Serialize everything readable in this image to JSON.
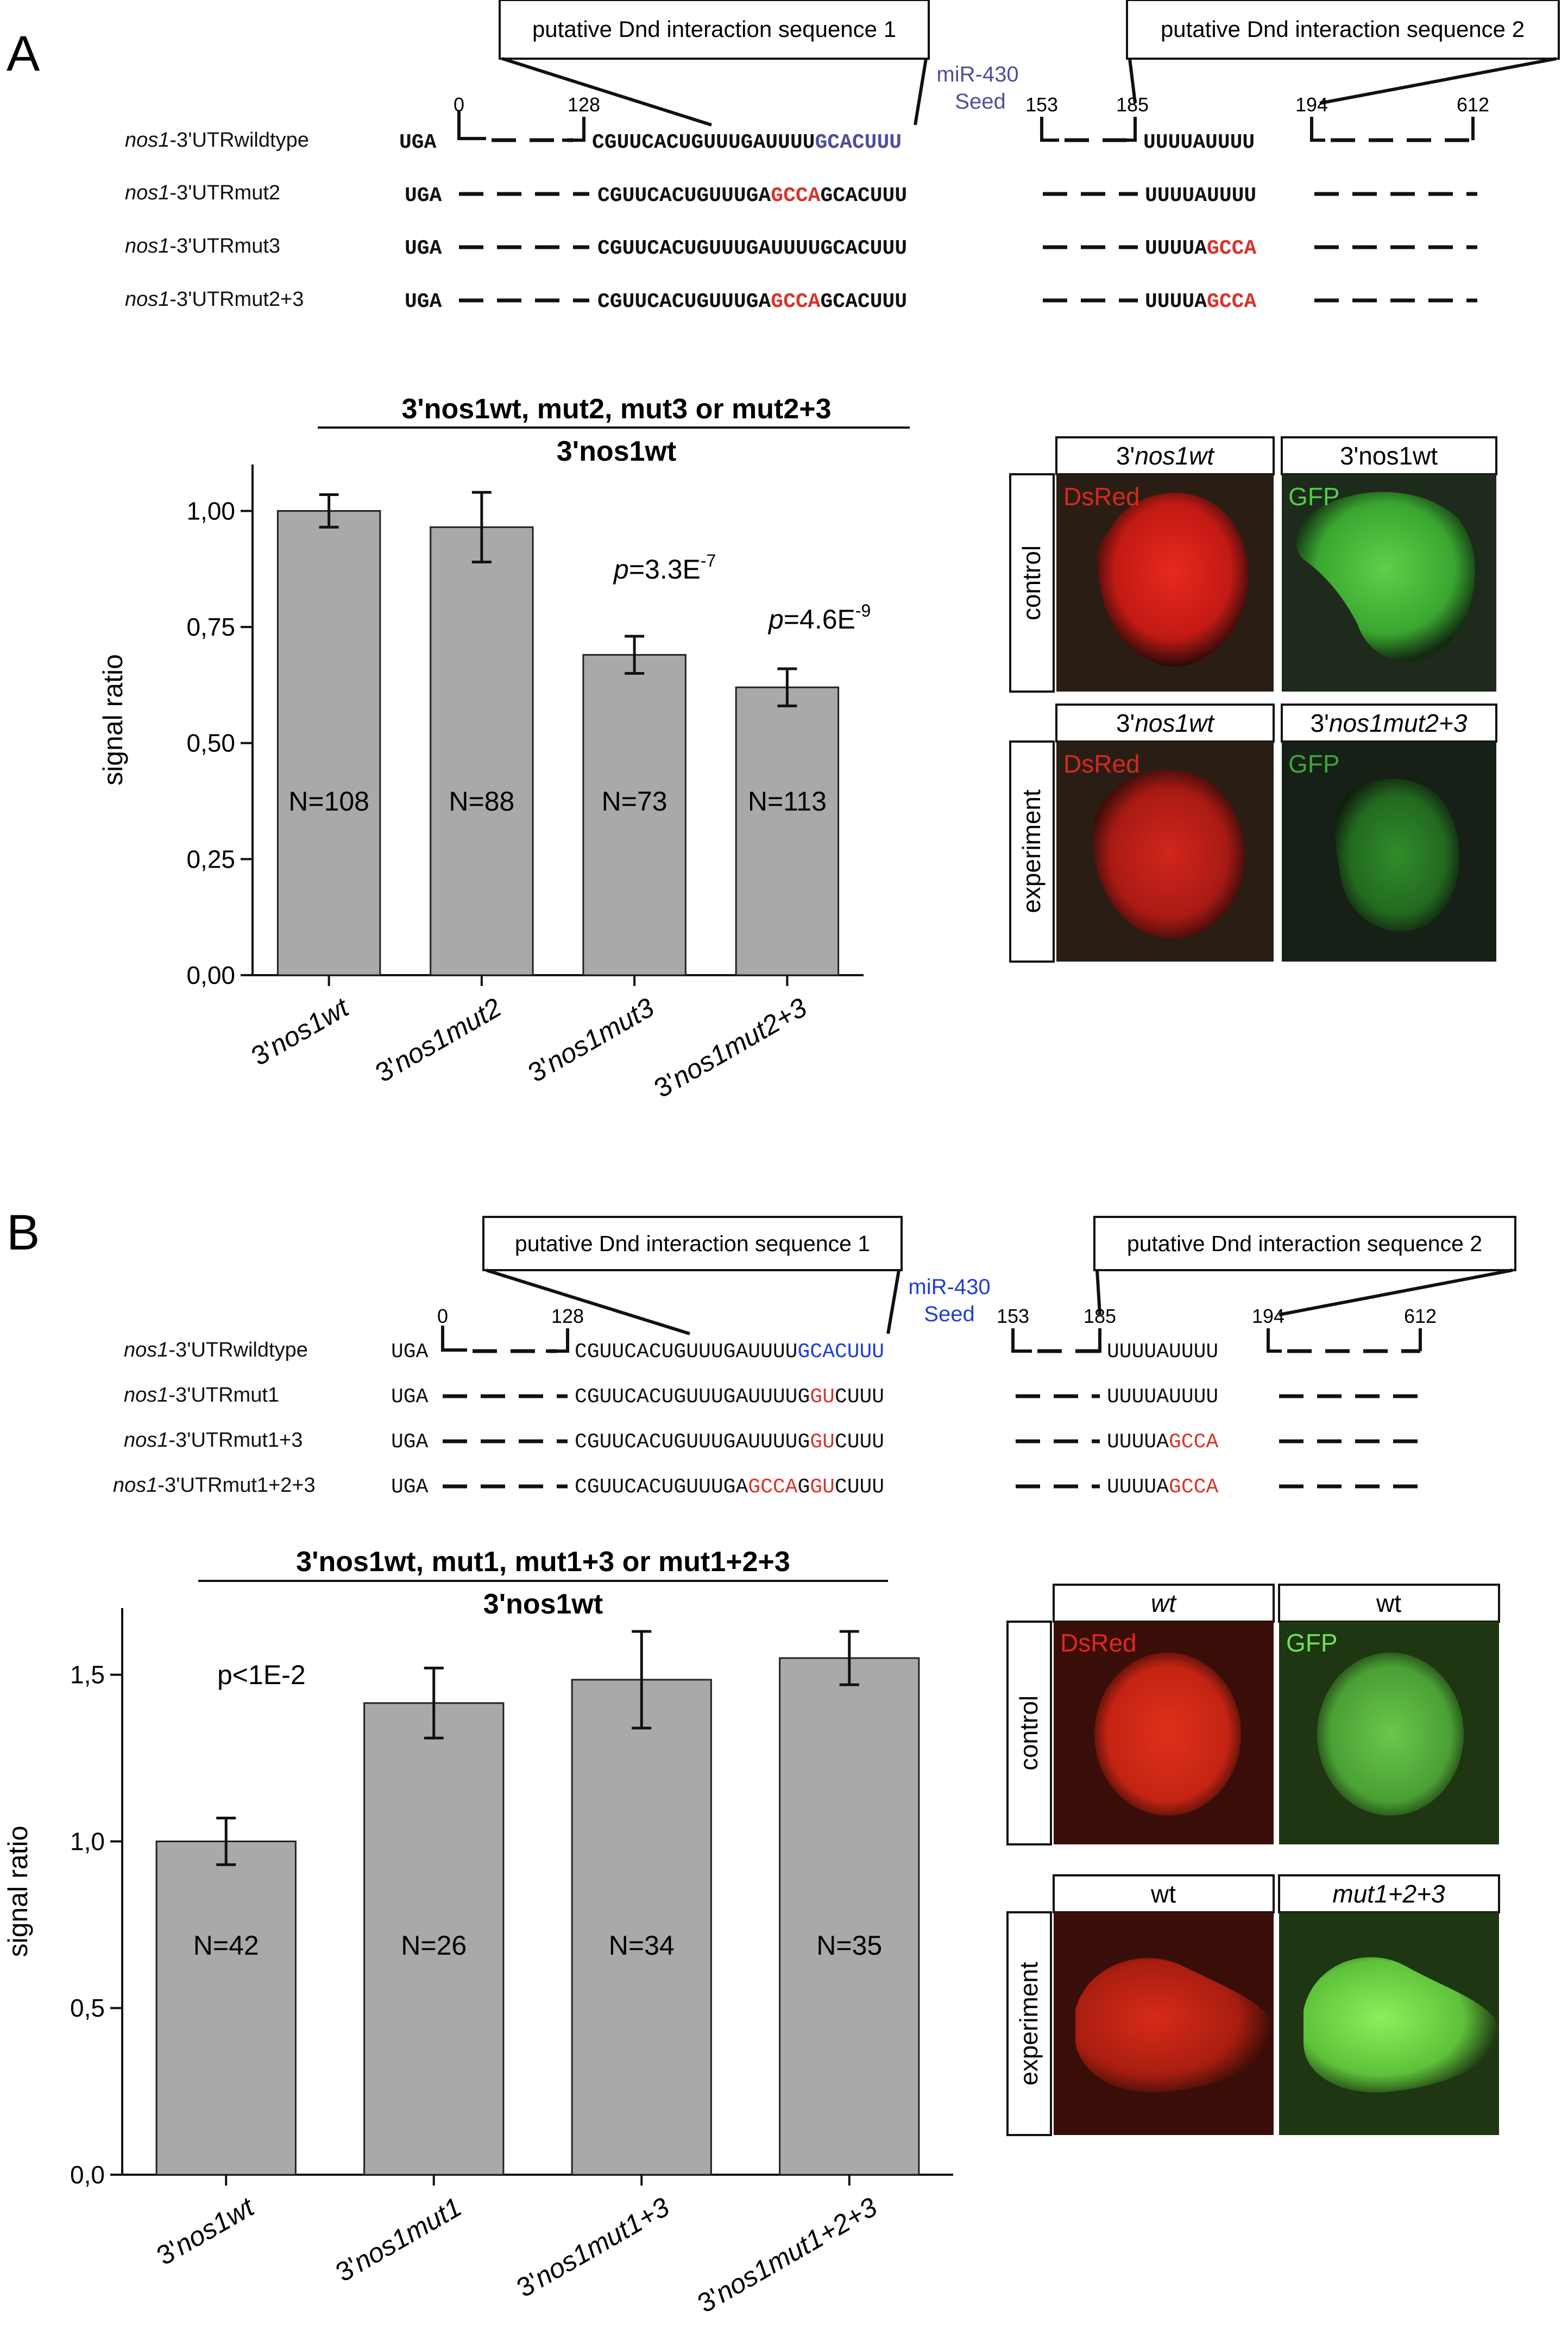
{
  "panels": [
    {
      "letter": "A",
      "box1": "putative Dnd interaction sequence 1",
      "box2": "putative Dnd interaction sequence 2",
      "seed1": "miR-430",
      "seed2": "Seed",
      "pos": [
        "0",
        "128",
        "153",
        "185",
        "194",
        "612"
      ],
      "rows": [
        {
          "label_it": "nos1",
          "label": "-3'UTRwildtype"
        },
        {
          "label_it": "nos1",
          "label": "-3'UTRmut2"
        },
        {
          "label_it": "nos1",
          "label": "-3'UTRmut3"
        },
        {
          "label_it": "nos1",
          "label": "-3'UTRmut2+3"
        }
      ],
      "title_line1": "3'nos1wt, mut2, mut3 or mut2+3",
      "title_line2": "3'nos1wt",
      "pvals": [
        {
          "prefix": "p",
          "text": "=3.3E",
          "exp": "-7"
        },
        {
          "prefix": "p",
          "text": "=4.6E",
          "exp": "-9"
        }
      ],
      "images": {
        "row1": "control",
        "row2": "experiment",
        "headers": [
          "3'nos1wt",
          "3'nos1wt",
          "3'nos1wt",
          "3'nos1mut2+3"
        ],
        "tags": [
          "DsRed",
          "GFP",
          "DsRed",
          "GFP"
        ]
      }
    },
    {
      "letter": "B",
      "box1": "putative Dnd interaction sequence 1",
      "box2": "putative Dnd interaction sequence 2",
      "seed1": "miR-430",
      "seed2": "Seed",
      "pos": [
        "0",
        "128",
        "153",
        "185",
        "194",
        "612"
      ],
      "rows": [
        {
          "label_it": "nos1",
          "label": "-3'UTRwildtype"
        },
        {
          "label_it": "nos1",
          "label": "-3'UTRmut1"
        },
        {
          "label_it": "nos1",
          "label": "-3'UTRmut1+3"
        },
        {
          "label_it": "nos1",
          "label": "-3'UTRmut1+2+3"
        }
      ],
      "title_line1": "3'nos1wt, mut1, mut1+3 or mut1+2+3",
      "title_line2": "3'nos1wt",
      "pvals": [
        {
          "text": "p<1E-2"
        }
      ],
      "images": {
        "row1": "control",
        "row2": "experiment",
        "headers": [
          "wt",
          "wt",
          "wt",
          "mut1+2+3"
        ],
        "tags": [
          "DsRed",
          "GFP",
          "",
          ""
        ]
      }
    }
  ],
  "chart_data": [
    {
      "type": "bar",
      "ylabel": "signal ratio",
      "categories": [
        "3'nos1wt",
        "3'nos1mut2",
        "3'nos1mut3",
        "3'nos1mut2+3"
      ],
      "values": [
        1.0,
        0.965,
        0.69,
        0.62
      ],
      "errors": [
        0.035,
        0.075,
        0.04,
        0.04
      ],
      "n_labels": [
        "N=108",
        "N=88",
        "N=73",
        "N=113"
      ],
      "ylim": [
        0,
        1.1
      ],
      "yticks": [
        "0,00",
        "0,25",
        "0,50",
        "0,75",
        "1,00"
      ],
      "ytick_values": [
        0,
        0.25,
        0.5,
        0.75,
        1.0
      ],
      "bar_color": "#a9a9a9"
    },
    {
      "type": "bar",
      "ylabel": "signal ratio",
      "categories": [
        "3'nos1wt",
        "3'nos1mut1",
        "3'nos1mut1+3",
        "3'nos1mut1+2+3"
      ],
      "values": [
        1.0,
        1.415,
        1.485,
        1.55
      ],
      "errors": [
        0.07,
        0.105,
        0.145,
        0.08
      ],
      "n_labels": [
        "N=42",
        "N=26",
        "N=34",
        "N=35"
      ],
      "ylim": [
        0,
        1.7
      ],
      "yticks": [
        "0,0",
        "0,5",
        "1,0",
        "1,5"
      ],
      "ytick_values": [
        0,
        0.5,
        1.0,
        1.5
      ],
      "bar_color": "#a9a9a9"
    }
  ]
}
